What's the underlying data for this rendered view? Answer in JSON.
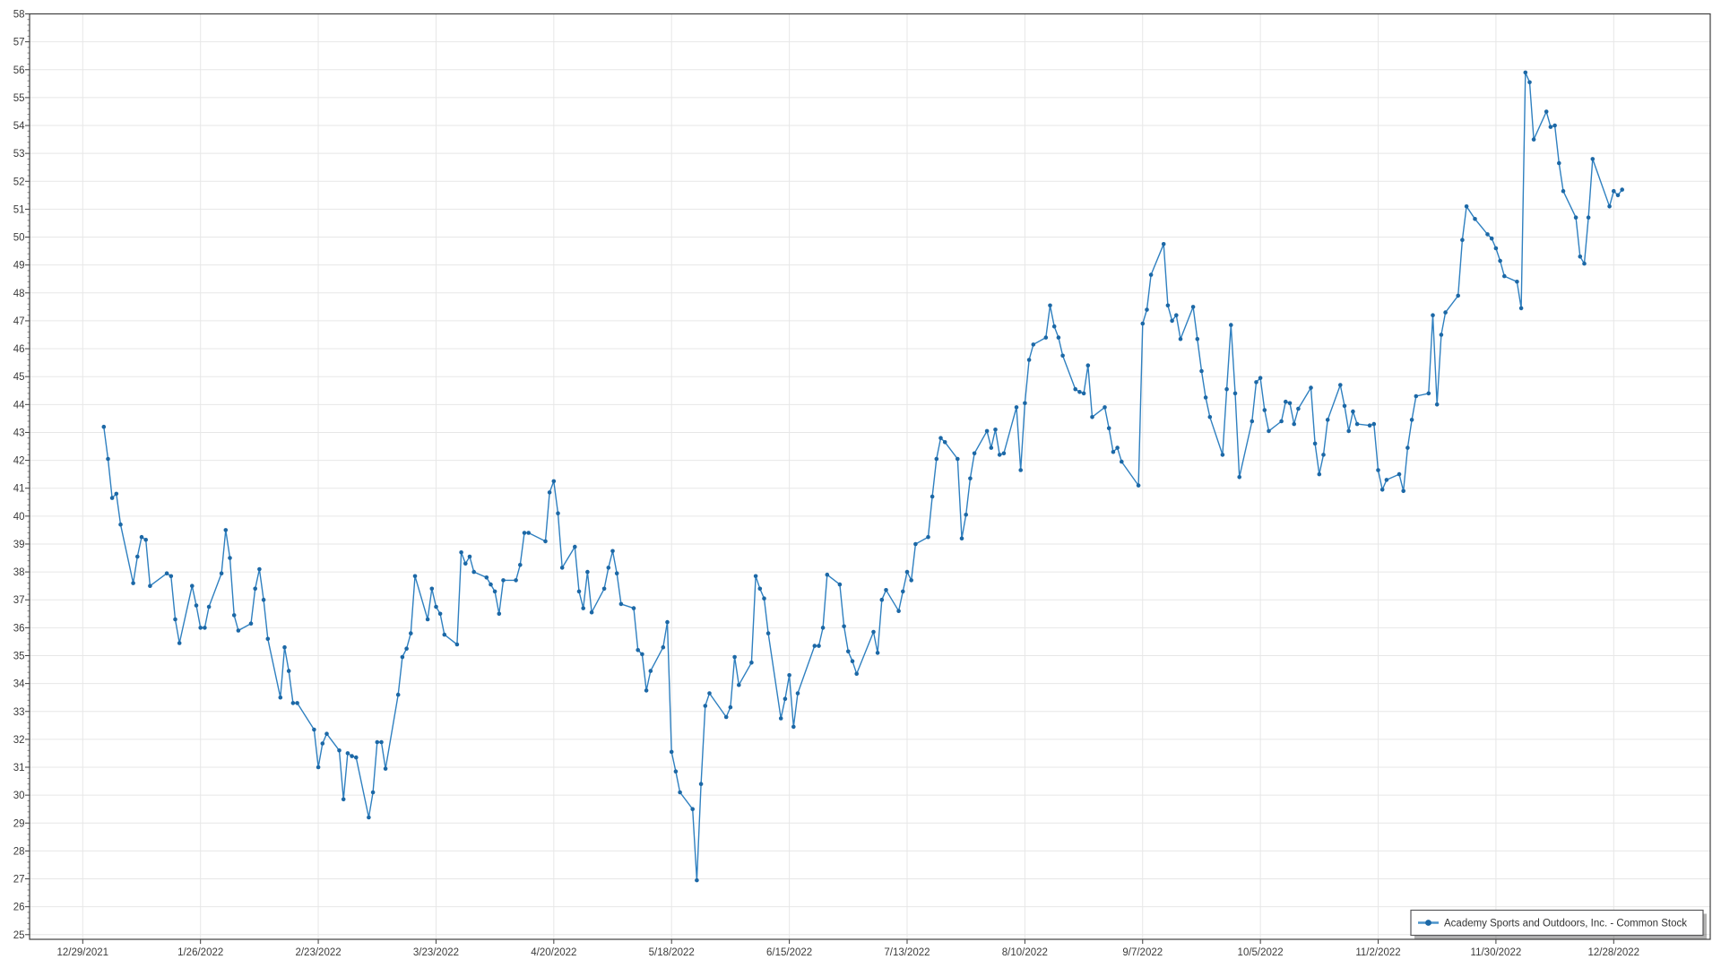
{
  "chart_data": {
    "type": "line",
    "title": "",
    "grid": true,
    "legend_position": "bottom-right",
    "colors": {
      "line": "#2f80c0",
      "marker": "#1c68a6",
      "grid": "#e7e7e7",
      "axis": "#3f3f3f",
      "label": "#3b3b3b",
      "background": "#ffffff",
      "legend_border": "#58585a",
      "legend_shadow": "rgba(0,0,0,0.30)"
    },
    "y_axis": {
      "min": 25,
      "max": 58,
      "step": 1,
      "tick_labels": [
        "25",
        "26",
        "27",
        "28",
        "29",
        "30",
        "31",
        "32",
        "33",
        "34",
        "35",
        "36",
        "37",
        "38",
        "39",
        "40",
        "41",
        "42",
        "43",
        "44",
        "45",
        "46",
        "47",
        "48",
        "49",
        "50",
        "51",
        "52",
        "53",
        "54",
        "55",
        "56",
        "57",
        "58"
      ]
    },
    "x_axis": {
      "tick_labels": [
        "12/29/2021",
        "1/26/2022",
        "2/23/2022",
        "3/23/2022",
        "4/20/2022",
        "5/18/2022",
        "6/15/2022",
        "7/13/2022",
        "8/10/2022",
        "9/7/2022",
        "10/5/2022",
        "11/2/2022",
        "11/30/2022",
        "12/28/2022"
      ]
    },
    "series": [
      {
        "name": "Academy Sports and Outdoors, Inc. - Common Stock",
        "dates": [
          "1/3/2022",
          "1/4/2022",
          "1/5/2022",
          "1/6/2022",
          "1/7/2022",
          "1/10/2022",
          "1/11/2022",
          "1/12/2022",
          "1/13/2022",
          "1/14/2022",
          "1/18/2022",
          "1/19/2022",
          "1/20/2022",
          "1/21/2022",
          "1/24/2022",
          "1/25/2022",
          "1/26/2022",
          "1/27/2022",
          "1/28/2022",
          "1/31/2022",
          "2/1/2022",
          "2/2/2022",
          "2/3/2022",
          "2/4/2022",
          "2/7/2022",
          "2/8/2022",
          "2/9/2022",
          "2/10/2022",
          "2/11/2022",
          "2/14/2022",
          "2/15/2022",
          "2/16/2022",
          "2/17/2022",
          "2/18/2022",
          "2/22/2022",
          "2/23/2022",
          "2/24/2022",
          "2/25/2022",
          "2/28/2022",
          "3/1/2022",
          "3/2/2022",
          "3/3/2022",
          "3/4/2022",
          "3/7/2022",
          "3/8/2022",
          "3/9/2022",
          "3/10/2022",
          "3/11/2022",
          "3/14/2022",
          "3/15/2022",
          "3/16/2022",
          "3/17/2022",
          "3/18/2022",
          "3/21/2022",
          "3/22/2022",
          "3/23/2022",
          "3/24/2022",
          "3/25/2022",
          "3/28/2022",
          "3/29/2022",
          "3/30/2022",
          "3/31/2022",
          "4/1/2022",
          "4/4/2022",
          "4/5/2022",
          "4/6/2022",
          "4/7/2022",
          "4/8/2022",
          "4/11/2022",
          "4/12/2022",
          "4/13/2022",
          "4/14/2022",
          "4/18/2022",
          "4/19/2022",
          "4/20/2022",
          "4/21/2022",
          "4/22/2022",
          "4/25/2022",
          "4/26/2022",
          "4/27/2022",
          "4/28/2022",
          "4/29/2022",
          "5/2/2022",
          "5/3/2022",
          "5/4/2022",
          "5/5/2022",
          "5/6/2022",
          "5/9/2022",
          "5/10/2022",
          "5/11/2022",
          "5/12/2022",
          "5/13/2022",
          "5/16/2022",
          "5/17/2022",
          "5/18/2022",
          "5/19/2022",
          "5/20/2022",
          "5/23/2022",
          "5/24/2022",
          "5/25/2022",
          "5/26/2022",
          "5/27/2022",
          "5/31/2022",
          "6/1/2022",
          "6/2/2022",
          "6/3/2022",
          "6/6/2022",
          "6/7/2022",
          "6/8/2022",
          "6/9/2022",
          "6/10/2022",
          "6/13/2022",
          "6/14/2022",
          "6/15/2022",
          "6/16/2022",
          "6/17/2022",
          "6/21/2022",
          "6/22/2022",
          "6/23/2022",
          "6/24/2022",
          "6/27/2022",
          "6/28/2022",
          "6/29/2022",
          "6/30/2022",
          "7/1/2022",
          "7/5/2022",
          "7/6/2022",
          "7/7/2022",
          "7/8/2022",
          "7/11/2022",
          "7/12/2022",
          "7/13/2022",
          "7/14/2022",
          "7/15/2022",
          "7/18/2022",
          "7/19/2022",
          "7/20/2022",
          "7/21/2022",
          "7/22/2022",
          "7/25/2022",
          "7/26/2022",
          "7/27/2022",
          "7/28/2022",
          "7/29/2022",
          "8/1/2022",
          "8/2/2022",
          "8/3/2022",
          "8/4/2022",
          "8/5/2022",
          "8/8/2022",
          "8/9/2022",
          "8/10/2022",
          "8/11/2022",
          "8/12/2022",
          "8/15/2022",
          "8/16/2022",
          "8/17/2022",
          "8/18/2022",
          "8/19/2022",
          "8/22/2022",
          "8/23/2022",
          "8/24/2022",
          "8/25/2022",
          "8/26/2022",
          "8/29/2022",
          "8/30/2022",
          "8/31/2022",
          "9/1/2022",
          "9/2/2022",
          "9/6/2022",
          "9/7/2022",
          "9/8/2022",
          "9/9/2022",
          "9/12/2022",
          "9/13/2022",
          "9/14/2022",
          "9/15/2022",
          "9/16/2022",
          "9/19/2022",
          "9/20/2022",
          "9/21/2022",
          "9/22/2022",
          "9/23/2022",
          "9/26/2022",
          "9/27/2022",
          "9/28/2022",
          "9/29/2022",
          "9/30/2022",
          "10/3/2022",
          "10/4/2022",
          "10/5/2022",
          "10/6/2022",
          "10/7/2022",
          "10/10/2022",
          "10/11/2022",
          "10/12/2022",
          "10/13/2022",
          "10/14/2022",
          "10/17/2022",
          "10/18/2022",
          "10/19/2022",
          "10/20/2022",
          "10/21/2022",
          "10/24/2022",
          "10/25/2022",
          "10/26/2022",
          "10/27/2022",
          "10/28/2022",
          "10/31/2022",
          "11/1/2022",
          "11/2/2022",
          "11/3/2022",
          "11/4/2022",
          "11/7/2022",
          "11/8/2022",
          "11/9/2022",
          "11/10/2022",
          "11/11/2022",
          "11/14/2022",
          "11/15/2022",
          "11/16/2022",
          "11/17/2022",
          "11/18/2022",
          "11/21/2022",
          "11/22/2022",
          "11/23/2022",
          "11/25/2022",
          "11/28/2022",
          "11/29/2022",
          "11/30/2022",
          "12/1/2022",
          "12/2/2022",
          "12/5/2022",
          "12/6/2022",
          "12/7/2022",
          "12/8/2022",
          "12/9/2022",
          "12/12/2022",
          "12/13/2022",
          "12/14/2022",
          "12/15/2022",
          "12/16/2022",
          "12/19/2022",
          "12/20/2022",
          "12/21/2022",
          "12/22/2022",
          "12/23/2022",
          "12/27/2022",
          "12/28/2022",
          "12/29/2022",
          "12/30/2022"
        ],
        "values": [
          43.2,
          42.05,
          40.65,
          40.8,
          39.7,
          37.6,
          38.55,
          39.25,
          39.15,
          37.5,
          37.95,
          37.85,
          36.3,
          35.45,
          37.5,
          36.8,
          36.0,
          36.0,
          36.75,
          37.95,
          39.5,
          38.5,
          36.45,
          35.9,
          36.15,
          37.4,
          38.1,
          37.0,
          35.6,
          33.5,
          35.3,
          34.45,
          33.3,
          33.3,
          32.35,
          31.0,
          31.85,
          32.2,
          31.6,
          29.85,
          31.5,
          31.4,
          31.35,
          29.2,
          30.1,
          31.9,
          31.9,
          30.95,
          33.6,
          34.95,
          35.25,
          35.8,
          37.85,
          36.3,
          37.4,
          36.75,
          36.5,
          35.75,
          35.4,
          38.7,
          38.3,
          38.55,
          38.0,
          37.8,
          37.55,
          37.3,
          36.5,
          37.7,
          37.7,
          38.25,
          39.4,
          39.4,
          39.1,
          40.85,
          41.25,
          40.1,
          38.15,
          38.9,
          37.3,
          36.7,
          38.0,
          36.55,
          37.4,
          38.15,
          38.75,
          37.95,
          36.85,
          36.7,
          35.2,
          35.05,
          33.75,
          34.45,
          35.3,
          36.2,
          31.55,
          30.85,
          30.1,
          29.5,
          26.95,
          30.4,
          33.2,
          33.65,
          32.8,
          33.15,
          34.95,
          33.95,
          34.75,
          37.85,
          37.4,
          37.05,
          35.8,
          32.75,
          33.45,
          34.3,
          32.45,
          33.65,
          35.35,
          35.35,
          36.0,
          37.9,
          37.55,
          36.05,
          35.15,
          34.8,
          34.35,
          35.85,
          35.1,
          37.0,
          37.35,
          36.6,
          37.3,
          38.0,
          37.7,
          39.0,
          39.25,
          40.7,
          42.05,
          42.8,
          42.65,
          42.05,
          39.2,
          40.05,
          41.35,
          42.25,
          43.05,
          42.45,
          43.1,
          42.2,
          42.25,
          43.9,
          41.65,
          44.05,
          45.6,
          46.15,
          46.4,
          47.55,
          46.8,
          46.4,
          45.75,
          44.55,
          44.45,
          44.4,
          45.4,
          43.55,
          43.9,
          43.15,
          42.3,
          42.45,
          41.95,
          41.1,
          46.9,
          47.4,
          48.65,
          49.75,
          47.55,
          47.0,
          47.2,
          46.35,
          47.5,
          46.35,
          45.2,
          44.25,
          43.55,
          42.2,
          44.55,
          46.85,
          44.4,
          41.4,
          43.4,
          44.8,
          44.95,
          43.8,
          43.05,
          43.4,
          44.1,
          44.05,
          43.3,
          43.85,
          44.6,
          42.6,
          41.5,
          42.2,
          43.45,
          44.7,
          43.95,
          43.05,
          43.75,
          43.3,
          43.25,
          43.3,
          41.65,
          40.95,
          41.3,
          41.5,
          40.9,
          42.45,
          43.45,
          44.3,
          44.4,
          47.2,
          44.0,
          46.5,
          47.3,
          47.9,
          49.9,
          51.1,
          50.65,
          50.1,
          49.95,
          49.6,
          49.15,
          48.6,
          48.4,
          47.45,
          55.9,
          55.55,
          53.5,
          54.5,
          53.95,
          54.0,
          52.65,
          51.65,
          50.7,
          49.3,
          49.05,
          50.7,
          52.8,
          51.1,
          51.65,
          51.5,
          51.7
        ]
      }
    ]
  }
}
